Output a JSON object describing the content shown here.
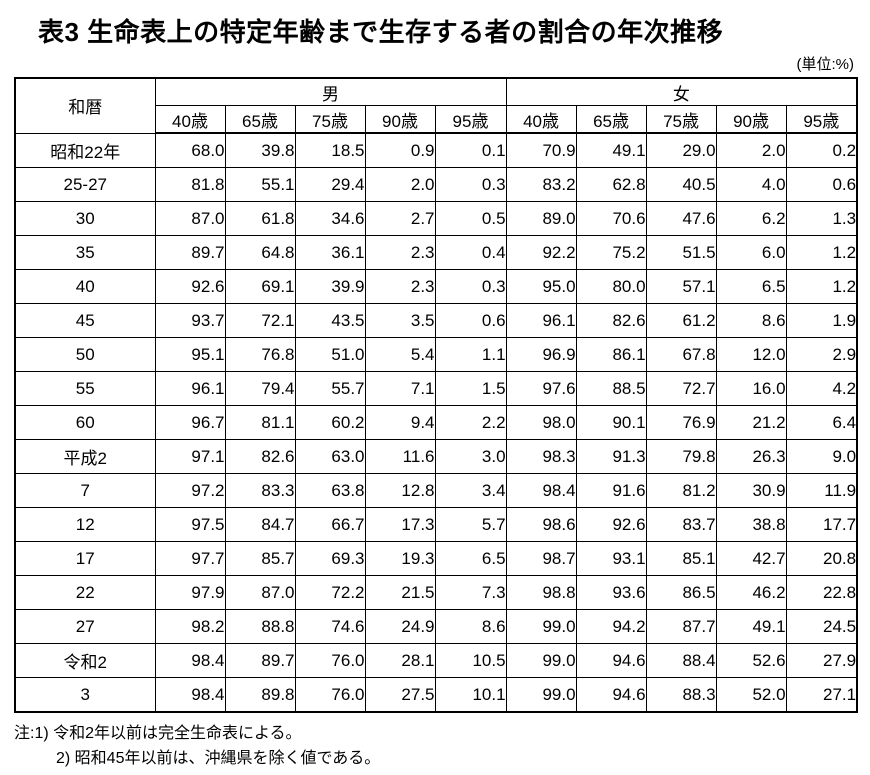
{
  "page": {
    "title": "表3 生命表上の特定年齢まで生存する者の割合の年次推移",
    "unit_label": "(単位:%)",
    "notes": [
      "注:1) 令和2年以前は完全生命表による。",
      "2) 昭和45年以前は、沖縄県を除く値である。"
    ]
  },
  "table": {
    "era_header": "和暦",
    "group_headers": [
      "男",
      "女"
    ],
    "age_headers": [
      "40歳",
      "65歳",
      "75歳",
      "90歳",
      "95歳"
    ],
    "rows": [
      {
        "era": "昭和22年",
        "male": [
          "68.0",
          "39.8",
          "18.5",
          "0.9",
          "0.1"
        ],
        "female": [
          "70.9",
          "49.1",
          "29.0",
          "2.0",
          "0.2"
        ]
      },
      {
        "era": "25-27",
        "male": [
          "81.8",
          "55.1",
          "29.4",
          "2.0",
          "0.3"
        ],
        "female": [
          "83.2",
          "62.8",
          "40.5",
          "4.0",
          "0.6"
        ]
      },
      {
        "era": "30",
        "male": [
          "87.0",
          "61.8",
          "34.6",
          "2.7",
          "0.5"
        ],
        "female": [
          "89.0",
          "70.6",
          "47.6",
          "6.2",
          "1.3"
        ]
      },
      {
        "era": "35",
        "male": [
          "89.7",
          "64.8",
          "36.1",
          "2.3",
          "0.4"
        ],
        "female": [
          "92.2",
          "75.2",
          "51.5",
          "6.0",
          "1.2"
        ]
      },
      {
        "era": "40",
        "male": [
          "92.6",
          "69.1",
          "39.9",
          "2.3",
          "0.3"
        ],
        "female": [
          "95.0",
          "80.0",
          "57.1",
          "6.5",
          "1.2"
        ]
      },
      {
        "era": "45",
        "male": [
          "93.7",
          "72.1",
          "43.5",
          "3.5",
          "0.6"
        ],
        "female": [
          "96.1",
          "82.6",
          "61.2",
          "8.6",
          "1.9"
        ]
      },
      {
        "era": "50",
        "male": [
          "95.1",
          "76.8",
          "51.0",
          "5.4",
          "1.1"
        ],
        "female": [
          "96.9",
          "86.1",
          "67.8",
          "12.0",
          "2.9"
        ]
      },
      {
        "era": "55",
        "male": [
          "96.1",
          "79.4",
          "55.7",
          "7.1",
          "1.5"
        ],
        "female": [
          "97.6",
          "88.5",
          "72.7",
          "16.0",
          "4.2"
        ]
      },
      {
        "era": "60",
        "male": [
          "96.7",
          "81.1",
          "60.2",
          "9.4",
          "2.2"
        ],
        "female": [
          "98.0",
          "90.1",
          "76.9",
          "21.2",
          "6.4"
        ]
      },
      {
        "era": "平成2",
        "male": [
          "97.1",
          "82.6",
          "63.0",
          "11.6",
          "3.0"
        ],
        "female": [
          "98.3",
          "91.3",
          "79.8",
          "26.3",
          "9.0"
        ]
      },
      {
        "era": "7",
        "male": [
          "97.2",
          "83.3",
          "63.8",
          "12.8",
          "3.4"
        ],
        "female": [
          "98.4",
          "91.6",
          "81.2",
          "30.9",
          "11.9"
        ]
      },
      {
        "era": "12",
        "male": [
          "97.5",
          "84.7",
          "66.7",
          "17.3",
          "5.7"
        ],
        "female": [
          "98.6",
          "92.6",
          "83.7",
          "38.8",
          "17.7"
        ]
      },
      {
        "era": "17",
        "male": [
          "97.7",
          "85.7",
          "69.3",
          "19.3",
          "6.5"
        ],
        "female": [
          "98.7",
          "93.1",
          "85.1",
          "42.7",
          "20.8"
        ]
      },
      {
        "era": "22",
        "male": [
          "97.9",
          "87.0",
          "72.2",
          "21.5",
          "7.3"
        ],
        "female": [
          "98.8",
          "93.6",
          "86.5",
          "46.2",
          "22.8"
        ]
      },
      {
        "era": "27",
        "male": [
          "98.2",
          "88.8",
          "74.6",
          "24.9",
          "8.6"
        ],
        "female": [
          "99.0",
          "94.2",
          "87.7",
          "49.1",
          "24.5"
        ]
      },
      {
        "era": "令和2",
        "male": [
          "98.4",
          "89.7",
          "76.0",
          "28.1",
          "10.5"
        ],
        "female": [
          "99.0",
          "94.6",
          "88.4",
          "52.6",
          "27.9"
        ]
      },
      {
        "era": "3",
        "male": [
          "98.4",
          "89.8",
          "76.0",
          "27.5",
          "10.1"
        ],
        "female": [
          "99.0",
          "94.6",
          "88.3",
          "52.0",
          "27.1"
        ]
      }
    ]
  }
}
